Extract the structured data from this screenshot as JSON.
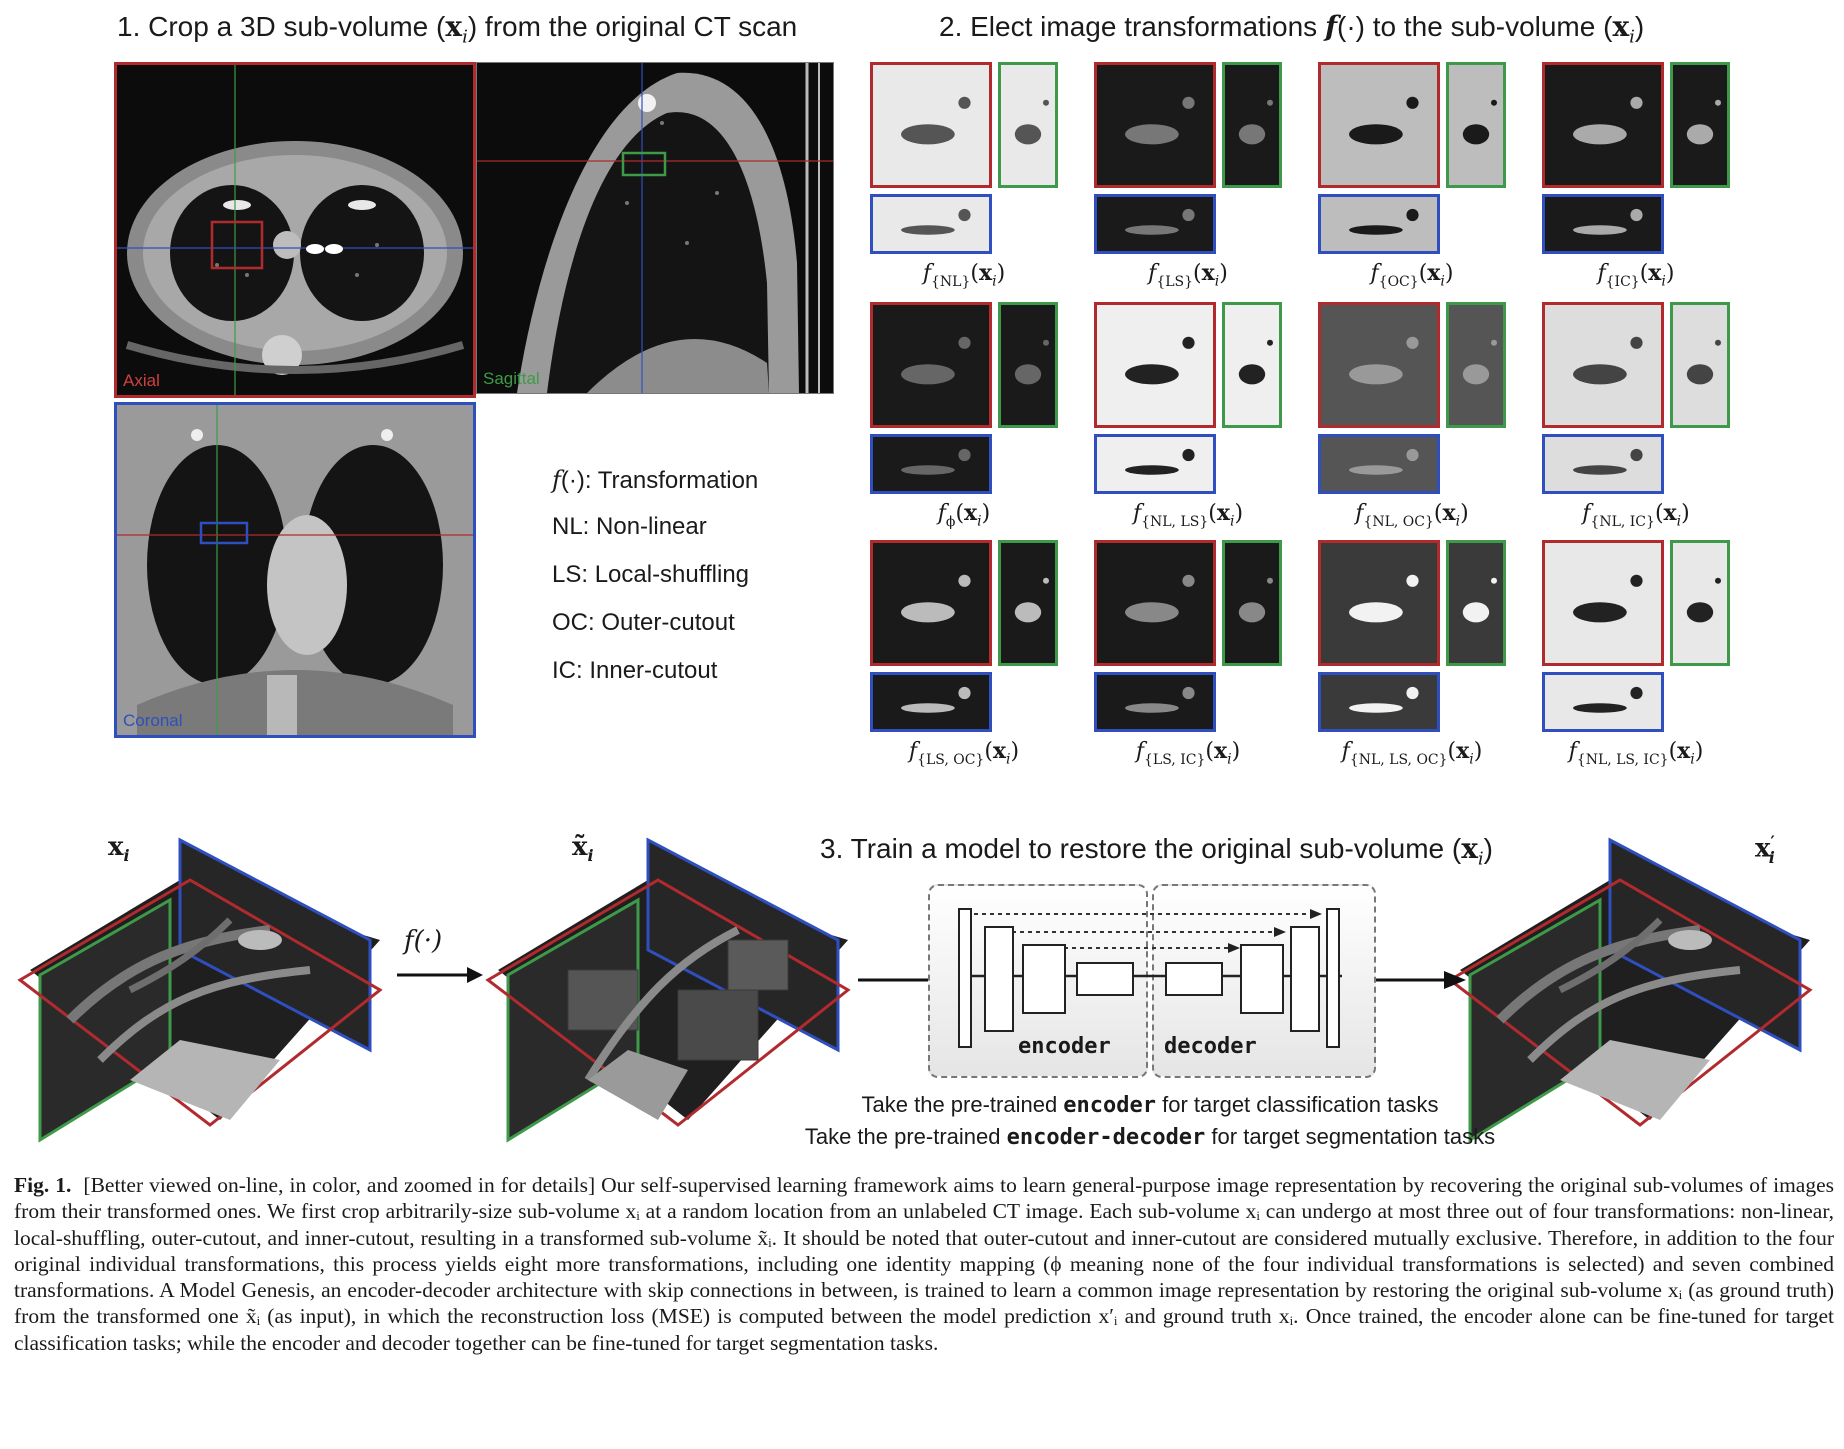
{
  "section1": {
    "title_prefix": "1. Crop a 3D sub-volume (",
    "title_var": "x",
    "title_sub": "i",
    "title_suffix": ") from the original CT scan"
  },
  "section2": {
    "title_prefix": "2. Elect image transformations ",
    "title_f": "f",
    "title_dot": "(·)",
    "title_mid": " to the sub-volume (",
    "title_var": "x",
    "title_sub": "i",
    "title_suffix": ")"
  },
  "section3": {
    "title_prefix": "3. Train a model to restore the original sub-volume (",
    "title_var": "x",
    "title_sub": "i",
    "title_suffix": ")"
  },
  "ct_views": [
    {
      "label": "Axial",
      "color": "#b02a2e"
    },
    {
      "label": "Sagittal",
      "color": "#3e9a48"
    },
    {
      "label": "Coronal",
      "color": "#2f4fbf"
    }
  ],
  "legend": {
    "f_line": "(·): Transformation",
    "f_symbol": "f",
    "items": [
      "NL: Non-linear",
      "LS: Local-shuffling",
      "OC: Outer-cutout",
      "IC: Inner-cutout"
    ]
  },
  "transforms": [
    {
      "sub": "{NL}"
    },
    {
      "sub": "{LS}"
    },
    {
      "sub": "{OC}"
    },
    {
      "sub": "{IC}"
    },
    {
      "sub": "ϕ"
    },
    {
      "sub": "{NL, LS}"
    },
    {
      "sub": "{NL, OC}"
    },
    {
      "sub": "{NL, IC}"
    },
    {
      "sub": "{LS, OC}"
    },
    {
      "sub": "{LS, IC}"
    },
    {
      "sub": "{NL, LS, OC}"
    },
    {
      "sub": "{NL, LS, IC}"
    }
  ],
  "transform_arg": {
    "open": "(",
    "var": "x",
    "sub": "i",
    "close": ")"
  },
  "cubes": {
    "input_label": "x",
    "input_sub": "i",
    "transformed_label": "x̃",
    "transformed_sub": "i",
    "output_label": "x",
    "output_prime": "′",
    "output_sub": "i"
  },
  "arrow_label": "f(·)",
  "architecture": {
    "encoder_label": "encoder",
    "decoder_label": "decoder"
  },
  "notes": [
    {
      "prefix": "Take the pre-trained ",
      "mono": "encoder",
      "suffix": " for target classification tasks"
    },
    {
      "prefix": "Take the pre-trained ",
      "mono": "encoder-decoder",
      "suffix": " for target segmentation tasks"
    }
  ],
  "caption": {
    "fig": "Fig. 1.",
    "text": "[Better viewed on-line, in color, and zoomed in for details] Our self-supervised learning framework aims to learn general-purpose image representation by recovering the original sub-volumes of images from their transformed ones. We first crop arbitrarily-size sub-volume xᵢ at a random location from an unlabeled CT image. Each sub-volume xᵢ can undergo at most three out of four transformations: non-linear, local-shuffling, outer-cutout, and inner-cutout, resulting in a transformed sub-volume x̃ᵢ. It should be noted that outer-cutout and inner-cutout are considered mutually exclusive. Therefore, in addition to the four original individual transformations, this process yields eight more transformations, including one identity mapping (ϕ meaning none of the four individual transformations is selected) and seven combined transformations. A Model Genesis, an encoder-decoder architecture with skip connections in between, is trained to learn a common image representation by restoring the original sub-volume xᵢ (as ground truth) from the transformed one x̃ᵢ (as input), in which the reconstruction loss (MSE) is computed between the model prediction x′ᵢ and ground truth xᵢ. Once trained, the encoder alone can be fine-tuned for target classification tasks; while the encoder and decoder together can be fine-tuned for target segmentation tasks."
  }
}
